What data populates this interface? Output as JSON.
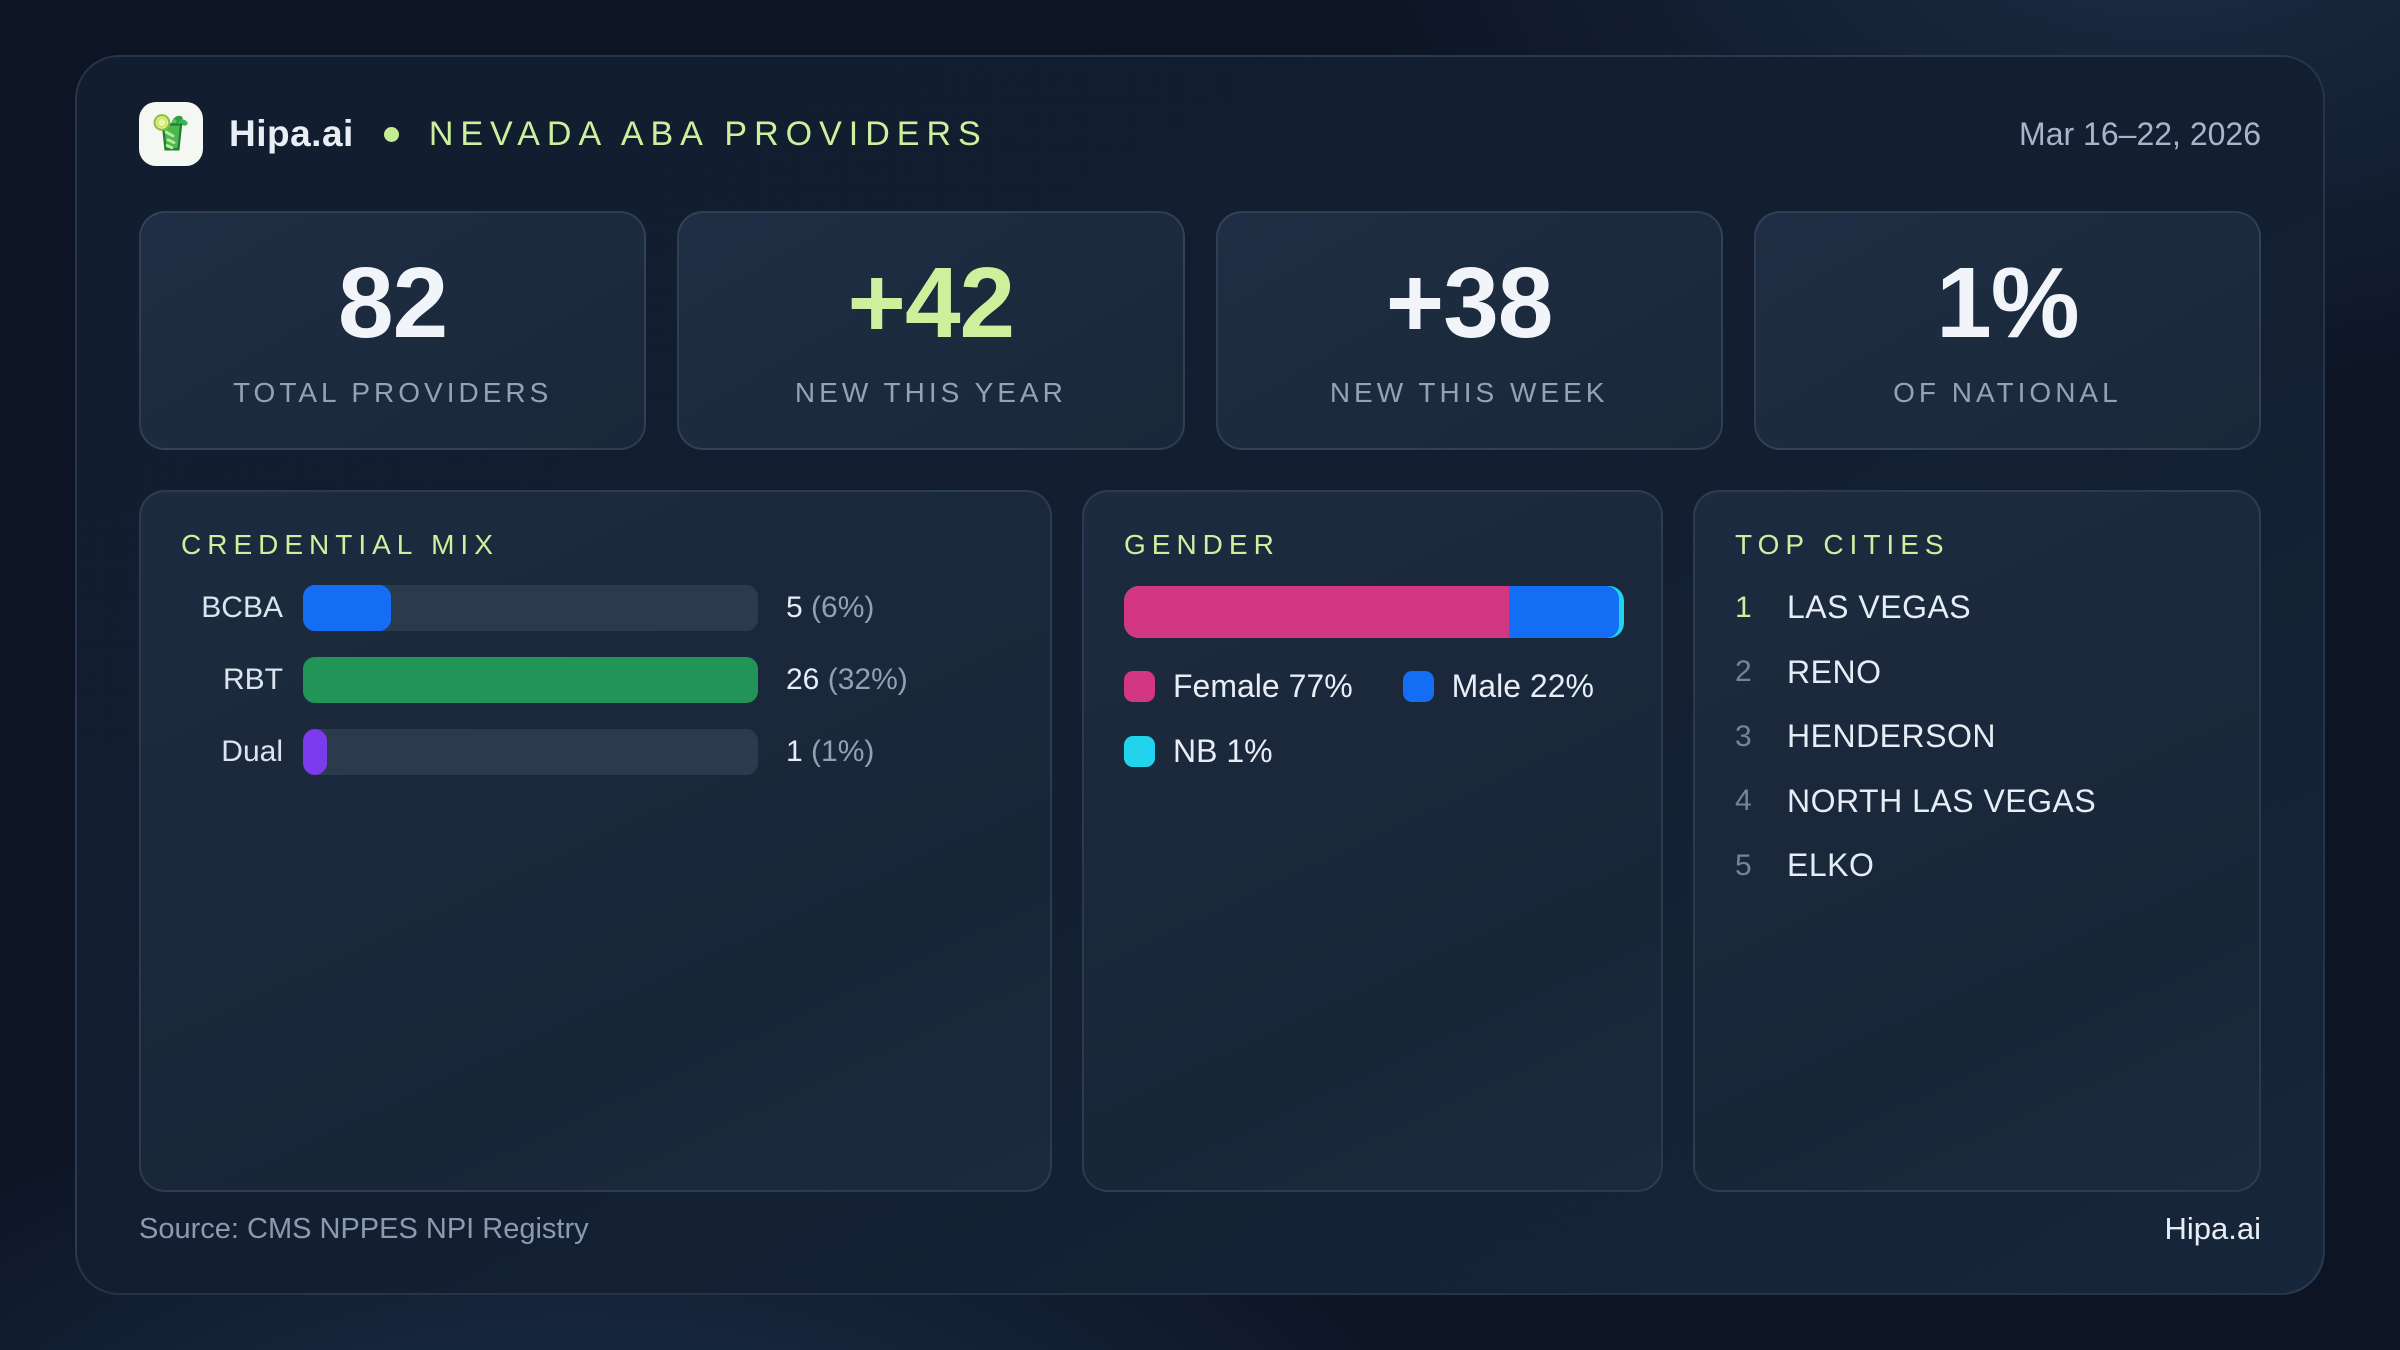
{
  "accent_color": "#cdf09d",
  "header": {
    "brand": "Hipa.ai",
    "logo_icon": "mojito-glass",
    "title": "NEVADA ABA PROVIDERS",
    "date_range": "Mar 16–22, 2026"
  },
  "stats": [
    {
      "value": "82",
      "label": "TOTAL PROVIDERS",
      "color": "#f1f5fa"
    },
    {
      "value": "+42",
      "label": "NEW THIS YEAR",
      "color": "#cdf09d"
    },
    {
      "value": "+38",
      "label": "NEW THIS WEEK",
      "color": "#f1f5fa"
    },
    {
      "value": "1%",
      "label": "OF NATIONAL",
      "color": "#f1f5fa"
    }
  ],
  "credential_mix": {
    "title": "CREDENTIAL MIX",
    "track_color": "#2c3a4e",
    "rows": [
      {
        "label": "BCBA",
        "value": 5,
        "count": "5",
        "pct_text": "(6%)",
        "color": "#146ef5"
      },
      {
        "label": "RBT",
        "value": 26,
        "count": "26",
        "pct_text": "(32%)",
        "color": "#239458"
      },
      {
        "label": "Dual",
        "value": 1,
        "count": "1",
        "pct_text": "(1%)",
        "color": "#7c3aed"
      }
    ]
  },
  "gender": {
    "title": "GENDER",
    "segments": [
      {
        "label": "Female",
        "pct": 77,
        "legend": "Female 77%",
        "color": "#d33784"
      },
      {
        "label": "Male",
        "pct": 22,
        "legend": "Male 22%",
        "color": "#146ef5"
      },
      {
        "label": "NB",
        "pct": 1,
        "legend": "NB 1%",
        "color": "#22d3ee"
      }
    ]
  },
  "top_cities": {
    "title": "TOP CITIES",
    "items": [
      {
        "rank": "1",
        "name": "LAS VEGAS",
        "rank_color": "#cdf09d"
      },
      {
        "rank": "2",
        "name": "RENO",
        "rank_color": "#76839a"
      },
      {
        "rank": "3",
        "name": "HENDERSON",
        "rank_color": "#76839a"
      },
      {
        "rank": "4",
        "name": "NORTH LAS VEGAS",
        "rank_color": "#76839a"
      },
      {
        "rank": "5",
        "name": "ELKO",
        "rank_color": "#76839a"
      }
    ]
  },
  "footer": {
    "source": "Source: CMS NPPES NPI Registry",
    "brand": "Hipa.ai"
  },
  "chart_data": [
    {
      "type": "bar",
      "orientation": "horizontal",
      "title": "CREDENTIAL MIX",
      "categories": [
        "BCBA",
        "RBT",
        "Dual"
      ],
      "values": [
        5,
        26,
        1
      ],
      "percent_of_total": [
        6,
        32,
        1
      ],
      "data_labels": [
        "5 (6%)",
        "26 (32%)",
        "1 (1%)"
      ],
      "bar_colors": [
        "#146ef5",
        "#239458",
        "#7c3aed"
      ],
      "xlim": [
        0,
        26
      ],
      "grid": false,
      "legend": false
    },
    {
      "type": "bar",
      "subtype": "stacked-100-percent",
      "title": "GENDER",
      "series": [
        {
          "name": "Female",
          "values": [
            77
          ],
          "color": "#d33784"
        },
        {
          "name": "Male",
          "values": [
            22
          ],
          "color": "#146ef5"
        },
        {
          "name": "NB",
          "values": [
            1
          ],
          "color": "#22d3ee"
        }
      ],
      "unit": "%",
      "legend_position": "below",
      "grid": false
    },
    {
      "type": "table",
      "title": "TOP CITIES",
      "columns": [
        "rank",
        "city"
      ],
      "rows": [
        [
          "1",
          "LAS VEGAS"
        ],
        [
          "2",
          "RENO"
        ],
        [
          "3",
          "HENDERSON"
        ],
        [
          "4",
          "NORTH LAS VEGAS"
        ],
        [
          "5",
          "ELKO"
        ]
      ]
    }
  ]
}
